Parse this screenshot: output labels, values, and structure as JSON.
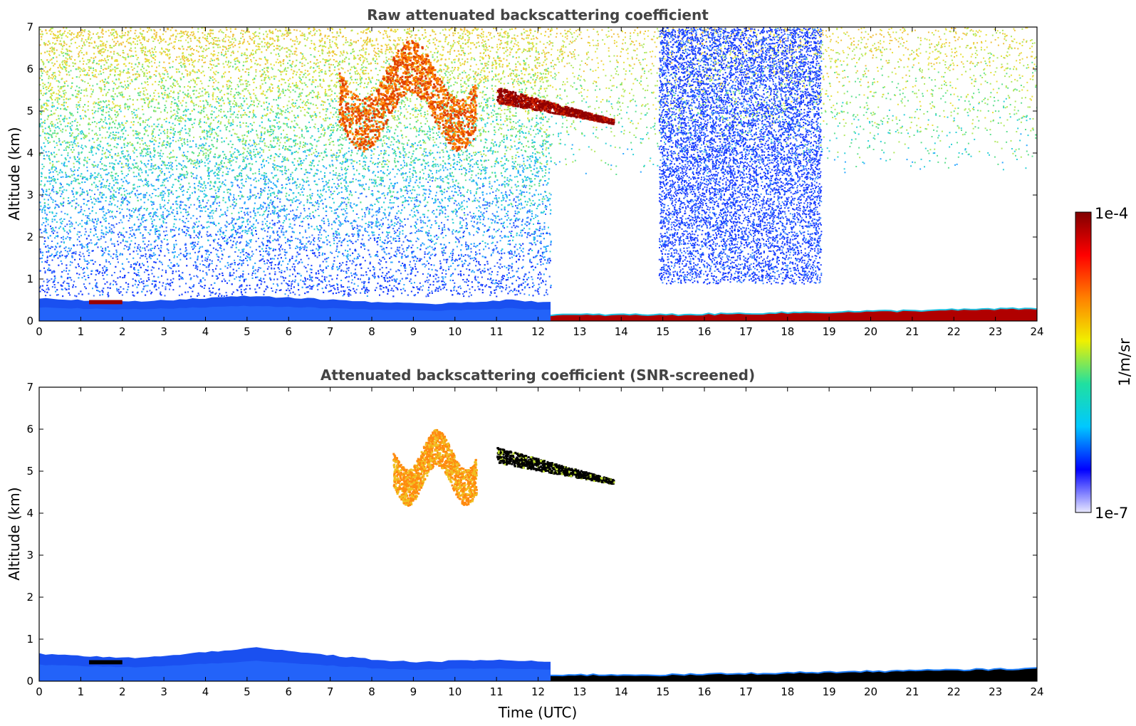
{
  "chart_data": [
    {
      "type": "heatmap",
      "title": "Raw attenuated backscattering coefficient",
      "xlabel": "",
      "ylabel": "Altitude (km)",
      "xlim": [
        0,
        24
      ],
      "ylim": [
        0,
        7
      ],
      "xticks": [
        "0",
        "1",
        "2",
        "3",
        "4",
        "5",
        "6",
        "7",
        "8",
        "9",
        "10",
        "11",
        "12",
        "13",
        "14",
        "15",
        "16",
        "17",
        "18",
        "19",
        "20",
        "21",
        "22",
        "23",
        "24"
      ],
      "yticks": [
        "0",
        "1",
        "2",
        "3",
        "4",
        "5",
        "6",
        "7"
      ],
      "grid": false,
      "features": [
        {
          "kind": "noise",
          "x": [
            0,
            12.3
          ],
          "y": [
            0.6,
            7
          ],
          "level": "blue-to-yellow increasing with altitude"
        },
        {
          "kind": "noise",
          "x": [
            12.3,
            24
          ],
          "y": [
            3.5,
            7
          ],
          "level": "sparse blue/green/yellow"
        },
        {
          "kind": "noise",
          "x": [
            14.9,
            18.8
          ],
          "y": [
            0.9,
            7
          ],
          "level": "dense blue"
        },
        {
          "kind": "boundary_layer",
          "x": [
            0,
            12.3
          ],
          "top_km": [
            0.55,
            0.5,
            0.45,
            0.5,
            0.55,
            0.6,
            0.55,
            0.5,
            0.45,
            0.4,
            0.45,
            0.5,
            0.45
          ],
          "level": "blue"
        },
        {
          "kind": "surface_layer",
          "x": [
            12.3,
            24
          ],
          "top_km": [
            0.15,
            0.15,
            0.2,
            0.25,
            0.3
          ],
          "level": "dark red"
        },
        {
          "kind": "aerosol_layer",
          "x": [
            1.2,
            2.0
          ],
          "y": [
            0.4,
            0.5
          ],
          "level": "dark red"
        },
        {
          "kind": "cloud",
          "x": [
            7.2,
            10.5
          ],
          "y": [
            4.2,
            7
          ],
          "level": "orange-red"
        },
        {
          "kind": "cloud",
          "x": [
            11.0,
            13.8
          ],
          "y": [
            4.75,
            5.5
          ],
          "level": "dark red"
        }
      ]
    },
    {
      "type": "heatmap",
      "title": "Attenuated backscattering coefficient (SNR-screened)",
      "xlabel": "Time (UTC)",
      "ylabel": "Altitude (km)",
      "xlim": [
        0,
        24
      ],
      "ylim": [
        0,
        7
      ],
      "xticks": [
        "0",
        "1",
        "2",
        "3",
        "4",
        "5",
        "6",
        "7",
        "8",
        "9",
        "10",
        "11",
        "12",
        "13",
        "14",
        "15",
        "16",
        "17",
        "18",
        "19",
        "20",
        "21",
        "22",
        "23",
        "24"
      ],
      "yticks": [
        "0",
        "1",
        "2",
        "3",
        "4",
        "5",
        "6",
        "7"
      ],
      "grid": false,
      "features": [
        {
          "kind": "boundary_layer",
          "x": [
            0,
            12.3
          ],
          "top_km": [
            0.65,
            0.6,
            0.55,
            0.6,
            0.7,
            0.8,
            0.7,
            0.6,
            0.5,
            0.45,
            0.5,
            0.5,
            0.45
          ],
          "level": "blue"
        },
        {
          "kind": "surface_layer",
          "x": [
            12.3,
            24
          ],
          "top_km": [
            0.15,
            0.15,
            0.2,
            0.25,
            0.3
          ],
          "level": "black"
        },
        {
          "kind": "aerosol_layer",
          "x": [
            1.2,
            2.0
          ],
          "y": [
            0.4,
            0.5
          ],
          "level": "black"
        },
        {
          "kind": "cloud",
          "x": [
            8.5,
            10.5
          ],
          "y": [
            4.3,
            6.2
          ],
          "level": "orange"
        },
        {
          "kind": "cloud",
          "x": [
            11.0,
            13.8
          ],
          "y": [
            4.75,
            5.5
          ],
          "level": "black"
        }
      ]
    }
  ],
  "colorbar": {
    "label": "1/m/sr",
    "max_label": "1e-4",
    "min_label": "1e-7",
    "scale": "log",
    "colors": [
      "#e8e8ff",
      "#0000ff",
      "#00c8ff",
      "#20e0a0",
      "#f0f000",
      "#ff8000",
      "#ff0000",
      "#800000"
    ]
  }
}
